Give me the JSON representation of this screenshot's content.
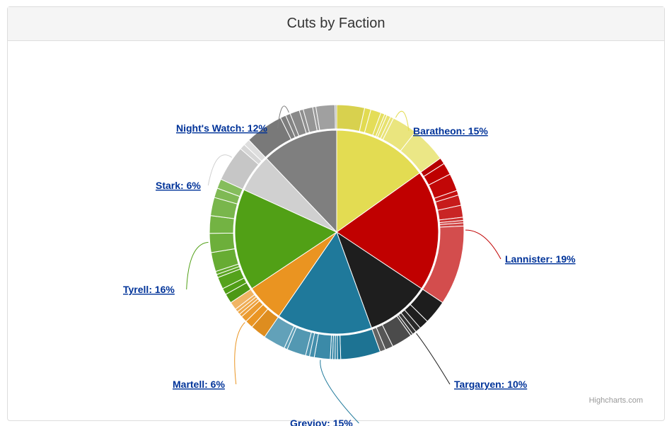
{
  "title": "Cuts by Faction",
  "credits": "Highcharts.com",
  "chart_data": {
    "type": "pie",
    "variant": "donut-drilldown",
    "title": "Cuts by Faction",
    "series": [
      {
        "name": "Baratheon",
        "value": 15,
        "label": "Baratheon: 15%",
        "color": "#e3dc52",
        "sub": [
          3.5,
          0.8,
          1.3,
          0.5,
          0.3,
          0.5,
          0.4,
          3.2,
          4.5
        ]
      },
      {
        "name": "Lannister",
        "value": 19,
        "label": "Lannister: 19%",
        "color": "#c00000",
        "sub": [
          0.8,
          1.5,
          2.2,
          0.6,
          1.3,
          1.5,
          0.4,
          0.3,
          0.4,
          10
        ]
      },
      {
        "name": "Targaryen",
        "value": 10,
        "label": "Targaryen: 10%",
        "color": "#1e1e1e",
        "sub": [
          3.0,
          1.2,
          0.7,
          0.5,
          0.3,
          2.6,
          1.0,
          0.7
        ]
      },
      {
        "name": "Greyjoy",
        "value": 15,
        "label": "Greyjoy: 15%",
        "color": "#1f799b",
        "sub": [
          5.0,
          0.4,
          0.3,
          0.3,
          0.3,
          2.0,
          0.6,
          0.5,
          2.4,
          0.4,
          2.8
        ]
      },
      {
        "name": "Martell",
        "value": 6,
        "label": "Martell: 6%",
        "color": "#ea9421",
        "sub": [
          2.0,
          1.0,
          0.8,
          0.4,
          0.4,
          0.4,
          1.0
        ]
      },
      {
        "name": "Tyrell",
        "value": 16,
        "label": "Tyrell: 16%",
        "color": "#51a016",
        "sub": [
          1.2,
          0.8,
          1.5,
          0.4,
          0.4,
          2.4,
          2.4,
          2.2,
          2.3,
          1.2,
          1.2
        ]
      },
      {
        "name": "Stark",
        "value": 6,
        "label": "Stark: 6%",
        "color": "#d0d0d0",
        "sub": [
          4.5,
          0.7,
          0.8
        ]
      },
      {
        "name": "Night's Watch",
        "value": 12,
        "label": "Night's Watch: 12%",
        "color": "#7f7f7f",
        "sub": [
          4.8,
          0.7,
          0.6,
          1.2,
          0.5,
          1.2,
          0.4,
          2.4,
          0.2
        ]
      }
    ]
  }
}
